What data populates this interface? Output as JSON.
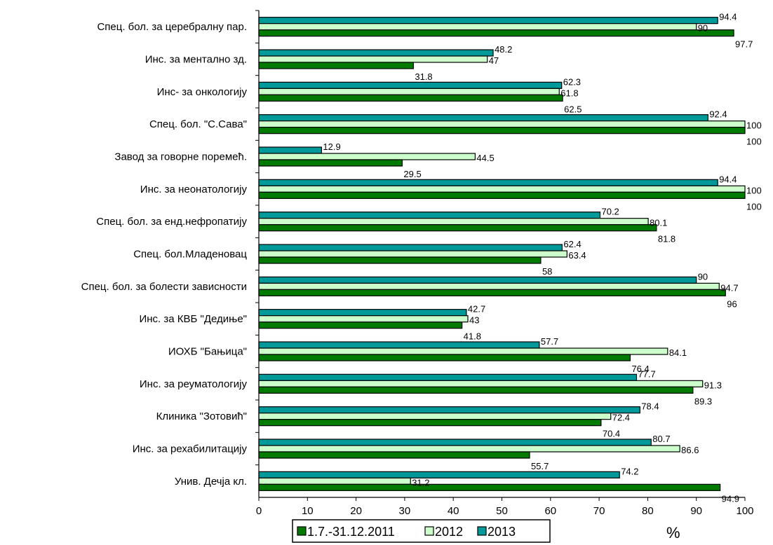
{
  "chart_data": {
    "type": "bar",
    "orientation": "horizontal",
    "categories": [
      "Спец. бол. за церебралну пар.",
      "Инс. за ментално зд.",
      "Инс- за онкологију",
      "Спец. бол. \"С.Сава\"",
      "Завод за говорне поремећ.",
      "Инс. за неонатологију",
      "Спец. бол. за енд.нефропатију",
      "Спец. бол.Младеновац",
      "Спец. бол. за болести зависности",
      "Инс. за КВБ \"Дедиње\"",
      "ИОХБ \"Бањица\"",
      "Инс. за реуматологију",
      "Клиника \"Зотовић\"",
      "Инс. за рехабилитацију",
      "Унив. Дечја кл."
    ],
    "series": [
      {
        "name": "1.7.-31.12.2011",
        "color": "#007a00",
        "values": [
          97.7,
          31.8,
          62.5,
          100,
          29.5,
          100,
          81.8,
          58,
          96,
          41.8,
          76.4,
          89.3,
          70.4,
          55.7,
          94.9
        ]
      },
      {
        "name": "2012",
        "color": "#ccffcc",
        "values": [
          90,
          47,
          61.8,
          100,
          44.5,
          100,
          80.1,
          63.4,
          94.7,
          43,
          84.1,
          91.3,
          72.4,
          86.6,
          31.2
        ]
      },
      {
        "name": "2013",
        "color": "#009999",
        "values": [
          94.4,
          48.2,
          62.3,
          92.4,
          12.9,
          94.4,
          70.2,
          62.4,
          90,
          42.7,
          57.7,
          77.7,
          78.4,
          80.7,
          74.2
        ]
      }
    ],
    "xlim": [
      0,
      100
    ],
    "xticks": [
      "0",
      "10",
      "20",
      "30",
      "40",
      "50",
      "60",
      "70",
      "80",
      "90",
      "100"
    ],
    "xlabel": "%",
    "grid": false,
    "legend_position": "bottom"
  }
}
